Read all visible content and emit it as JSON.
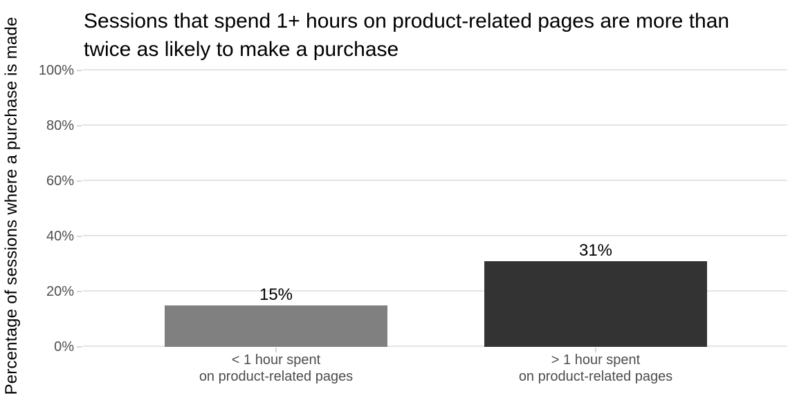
{
  "title": {
    "line1": "Sessions that spend 1+ hours on product-related pages are more than",
    "line2": "twice as likely to make a purchase"
  },
  "x_axis": {
    "categories": [
      {
        "line1": "< 1 hour spent",
        "line2": "on product-related pages"
      },
      {
        "line1": "> 1 hour spent",
        "line2": "on product-related pages"
      }
    ]
  },
  "chart_data": {
    "type": "bar",
    "title": "Sessions that spend 1+ hours on product-related pages are more than twice as likely to make a purchase",
    "categories": [
      "< 1 hour spent on product-related pages",
      "> 1 hour spent on product-related pages"
    ],
    "values": [
      15,
      31
    ],
    "value_labels": [
      "15%",
      "31%"
    ],
    "bar_colors": [
      "#808080",
      "#333333"
    ],
    "xlabel": "",
    "ylabel": "Percentage of sessions where a purchase is made",
    "ylim": [
      0,
      100
    ],
    "yticks": [
      0,
      20,
      40,
      60,
      80,
      100
    ],
    "ytick_labels": [
      "0%",
      "20%",
      "40%",
      "60%",
      "80%",
      "100%"
    ],
    "grid": "horizontal-major-only",
    "legend": "none",
    "colors": {
      "gridline": "#e4e4e4",
      "tick_mark": "#d6d6d6",
      "axis_text": "#4d4d4d",
      "title_text": "#000000"
    }
  }
}
